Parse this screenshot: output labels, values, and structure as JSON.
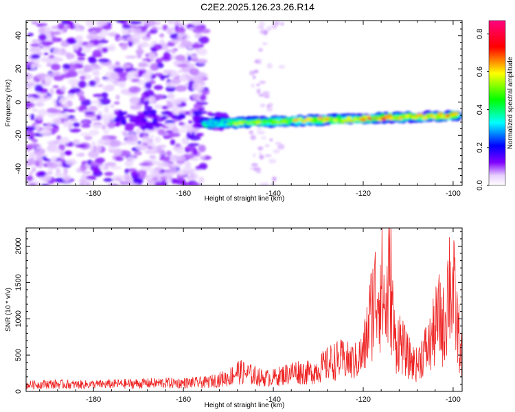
{
  "title": "C2E2.2025.126.23.26.R14",
  "chart_data": [
    {
      "type": "heatmap",
      "xlabel": "Height of straight line (km)",
      "ylabel": "Frequency (Hz)",
      "xlim": [
        -195,
        -98
      ],
      "ylim": [
        -50,
        49
      ],
      "xticks": [
        -180,
        -160,
        -140,
        -120,
        -100
      ],
      "yticks": [
        -40,
        -20,
        0,
        20,
        40
      ],
      "colorbar": {
        "label": "Normalized spectral amplitude",
        "range": [
          0.0,
          0.87
        ],
        "ticks": [
          "0.0",
          "0.2",
          "0.4",
          "0.6",
          "0.8"
        ],
        "colormap": [
          "#ffffff",
          "#8000ff",
          "#0000ff",
          "#00ffff",
          "#00ff00",
          "#ffff00",
          "#ff0000",
          "#ff0080"
        ]
      },
      "features": [
        {
          "desc": "diffuse noise patches",
          "x_range": [
            -195,
            -155
          ],
          "y_range": [
            -50,
            49
          ],
          "amplitude": 0.05
        },
        {
          "desc": "sparse noise column",
          "x_range": [
            -145,
            -138
          ],
          "y_range": [
            -50,
            49
          ],
          "amplitude": 0.03
        },
        {
          "desc": "signal trail",
          "x_start": -155,
          "x_end": -99,
          "freq_start": -13,
          "freq_end": -8,
          "amplitude_peak": 0.87
        }
      ]
    },
    {
      "type": "line",
      "xlabel": "Height of straight line (km)",
      "ylabel": "SNR (10 * v/v)",
      "xlim": [
        -195,
        -98
      ],
      "ylim": [
        0,
        2250
      ],
      "xticks": [
        -180,
        -160,
        -140,
        -120,
        -100
      ],
      "yticks": [
        0,
        500,
        1000,
        1500,
        2000
      ],
      "series": [
        {
          "color": "#ee2222",
          "x": [
            -195,
            -190,
            -185,
            -180,
            -175,
            -170,
            -165,
            -160,
            -155,
            -150,
            -148,
            -145,
            -142,
            -140,
            -137,
            -135,
            -132,
            -130,
            -127,
            -125,
            -122,
            -120,
            -119,
            -118,
            -117,
            -116,
            -115,
            -114,
            -113,
            -112,
            -111,
            -110,
            -109,
            -108,
            -107,
            -106,
            -105,
            -104,
            -103,
            -102,
            -101,
            -100,
            -99,
            -98
          ],
          "values": [
            120,
            140,
            130,
            130,
            140,
            150,
            160,
            160,
            170,
            260,
            380,
            320,
            250,
            260,
            330,
            380,
            350,
            420,
            560,
            600,
            550,
            700,
            1150,
            1600,
            1900,
            2050,
            1500,
            2250,
            900,
            1000,
            800,
            650,
            550,
            500,
            700,
            800,
            900,
            1200,
            1400,
            1200,
            2100,
            1900,
            1200,
            600
          ]
        }
      ]
    }
  ]
}
